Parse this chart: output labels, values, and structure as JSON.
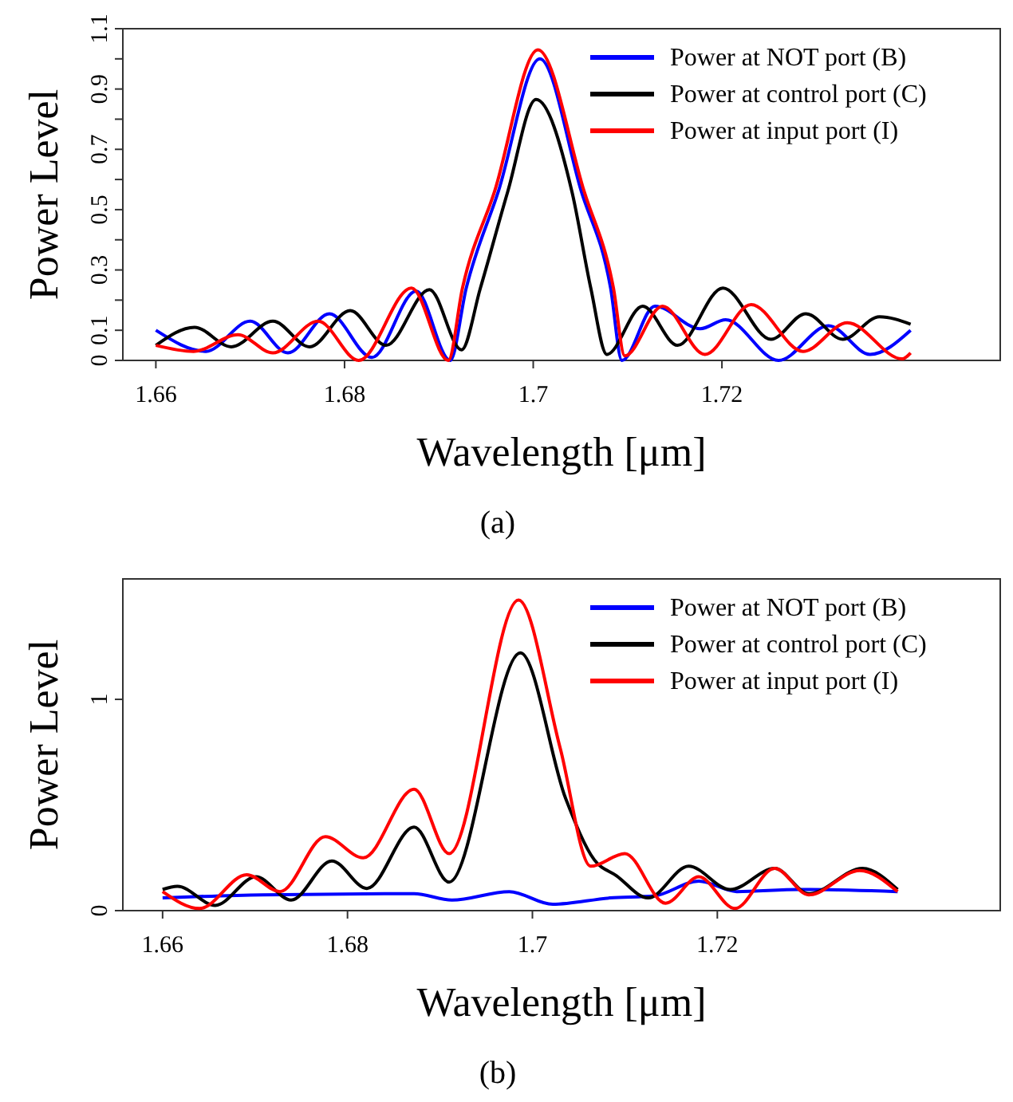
{
  "chart_data": [
    {
      "type": "line",
      "xlabel": "Wavelength [μm]",
      "ylabel": "Power Level",
      "annotations": [
        "(a)"
      ],
      "xlim": [
        1.6565,
        1.7495
      ],
      "ylim": [
        0,
        1.1
      ],
      "xticks": [
        1.66,
        1.68,
        1.7,
        1.72
      ],
      "yticks": [
        0,
        0.1,
        {
          "value": 0.2,
          "label": null
        },
        0.3,
        {
          "value": 0.4,
          "label": null
        },
        0.5,
        {
          "value": 0.6,
          "label": null
        },
        0.7,
        {
          "value": 0.8,
          "label": null
        },
        0.9,
        {
          "value": 1.0,
          "label": null
        },
        1.1
      ],
      "legend": "top right",
      "grid": false,
      "marker": "none",
      "line_style": "solid",
      "series": [
        {
          "name": "Power at NOT port (B)",
          "color": "#0000ff",
          "x": [
            1.66,
            1.6653,
            1.67,
            1.674,
            1.6784,
            1.6829,
            1.6876,
            1.6912,
            1.6929,
            1.6963,
            1.7007,
            1.7051,
            1.7082,
            1.7094,
            1.7129,
            1.7177,
            1.7204,
            1.726,
            1.7313,
            1.7357,
            1.74
          ],
          "values": [
            0.1,
            0.03,
            0.13,
            0.025,
            0.155,
            0.01,
            0.23,
            0.0,
            0.24,
            0.56,
            1.0,
            0.56,
            0.24,
            0.0,
            0.18,
            0.105,
            0.135,
            0.0,
            0.115,
            0.02,
            0.1
          ]
        },
        {
          "name": "Power at control port (C)",
          "color": "#000000",
          "x": [
            1.66,
            1.6641,
            1.668,
            1.6724,
            1.6763,
            1.6806,
            1.6844,
            1.689,
            1.6924,
            1.6944,
            1.6973,
            1.7003,
            1.7041,
            1.7061,
            1.7078,
            1.7116,
            1.7153,
            1.7201,
            1.7252,
            1.7289,
            1.7328,
            1.7367,
            1.74
          ],
          "values": [
            0.05,
            0.11,
            0.045,
            0.13,
            0.045,
            0.165,
            0.05,
            0.235,
            0.035,
            0.24,
            0.56,
            0.865,
            0.56,
            0.24,
            0.02,
            0.18,
            0.05,
            0.24,
            0.07,
            0.155,
            0.07,
            0.145,
            0.12
          ]
        },
        {
          "name": "Power at input port (I)",
          "color": "#ff0000",
          "x": [
            1.66,
            1.664,
            1.6687,
            1.6724,
            1.6772,
            1.6815,
            1.6871,
            1.691,
            1.6925,
            1.6959,
            1.7005,
            1.7054,
            1.7085,
            1.7097,
            1.7137,
            1.7182,
            1.7231,
            1.7286,
            1.7333,
            1.7391,
            1.74
          ],
          "values": [
            0.05,
            0.03,
            0.085,
            0.025,
            0.13,
            0.0,
            0.24,
            0.0,
            0.24,
            0.56,
            1.03,
            0.56,
            0.24,
            0.015,
            0.18,
            0.02,
            0.185,
            0.03,
            0.125,
            0.005,
            0.025
          ]
        }
      ]
    },
    {
      "type": "line",
      "xlabel": "Wavelength [μm]",
      "ylabel": "Power Level",
      "annotations": [
        "(b)"
      ],
      "xlim": [
        1.6557,
        1.7506
      ],
      "ylim": [
        0,
        1.57
      ],
      "xticks": [
        1.66,
        1.68,
        1.7,
        1.72
      ],
      "yticks": [
        0,
        1
      ],
      "legend": "top right",
      "grid": false,
      "marker": "none",
      "line_style": "solid",
      "series": [
        {
          "name": "Power at NOT port (B)",
          "color": "#0000ff",
          "x": [
            1.66,
            1.6708,
            1.6872,
            1.6913,
            1.6975,
            1.7022,
            1.7084,
            1.7132,
            1.718,
            1.7221,
            1.7289,
            1.7395
          ],
          "values": [
            0.06,
            0.075,
            0.08,
            0.05,
            0.09,
            0.03,
            0.06,
            0.07,
            0.14,
            0.09,
            0.1,
            0.09
          ]
        },
        {
          "name": "Power at control port (C)",
          "color": "#000000",
          "x": [
            1.66,
            1.6616,
            1.6657,
            1.6701,
            1.6739,
            1.6783,
            1.6821,
            1.6872,
            1.691,
            1.6987,
            1.7036,
            1.7067,
            1.7091,
            1.7125,
            1.7169,
            1.7214,
            1.7262,
            1.7299,
            1.7357,
            1.7395
          ],
          "values": [
            0.1,
            0.115,
            0.025,
            0.16,
            0.05,
            0.235,
            0.105,
            0.395,
            0.135,
            1.22,
            0.53,
            0.24,
            0.165,
            0.06,
            0.21,
            0.1,
            0.2,
            0.08,
            0.2,
            0.1
          ]
        },
        {
          "name": "Power at input port (I)",
          "color": "#ff0000",
          "x": [
            1.66,
            1.664,
            1.6691,
            1.6727,
            1.6776,
            1.6817,
            1.6872,
            1.691,
            1.6985,
            1.703,
            1.7063,
            1.71,
            1.7144,
            1.718,
            1.7219,
            1.7262,
            1.7299,
            1.7354,
            1.7395
          ],
          "values": [
            0.09,
            0.01,
            0.17,
            0.09,
            0.35,
            0.25,
            0.575,
            0.27,
            1.47,
            0.77,
            0.21,
            0.27,
            0.035,
            0.16,
            0.01,
            0.2,
            0.075,
            0.19,
            0.09
          ]
        }
      ]
    }
  ]
}
